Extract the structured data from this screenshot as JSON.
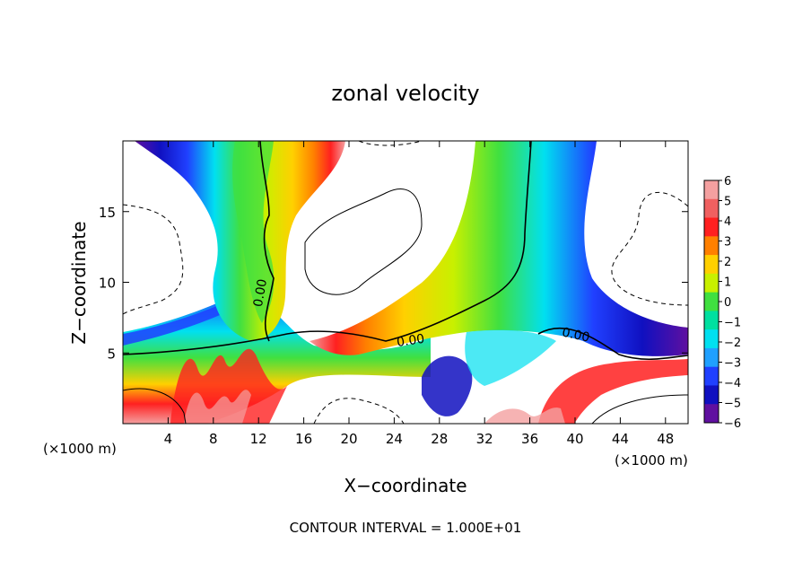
{
  "chart_data": {
    "type": "heatmap",
    "title": "zonal velocity",
    "xlabel": "X−coordinate",
    "ylabel": "Z−coordinate",
    "x_unit_left": "(×1000 m)",
    "x_unit_right": "(×1000 m)",
    "footer": "CONTOUR INTERVAL = 1.000E+01",
    "xlim": [
      0,
      50
    ],
    "ylim": [
      0,
      20
    ],
    "x_ticks": [
      4,
      8,
      12,
      16,
      20,
      24,
      28,
      32,
      36,
      40,
      44,
      48
    ],
    "y_ticks": [
      5,
      10,
      15
    ],
    "colorbar": {
      "values": [
        6,
        5,
        4,
        3,
        2,
        1,
        0,
        -1,
        -2,
        -3,
        -4,
        -5,
        -6
      ],
      "labels": [
        "6",
        "5",
        "4",
        "3",
        "2",
        "1",
        "0",
        "−1",
        "−2",
        "−3",
        "−4",
        "−5",
        "−6"
      ],
      "colors": [
        "#f4a0a0",
        "#f06060",
        "#ff2020",
        "#ff8000",
        "#ffd000",
        "#c8f000",
        "#40e040",
        "#00e0a0",
        "#00e0f0",
        "#20a0ff",
        "#2040ff",
        "#1010c0",
        "#6010a0"
      ]
    },
    "contour_labels": [
      {
        "text": "0.00",
        "x": 12.5,
        "z": 9.2,
        "angle": -80
      },
      {
        "text": "0.00",
        "x": 25.5,
        "z": 5.6,
        "angle": -8
      },
      {
        "text": "0.00",
        "x": 40.0,
        "z": 6.0,
        "angle": 12
      }
    ]
  }
}
